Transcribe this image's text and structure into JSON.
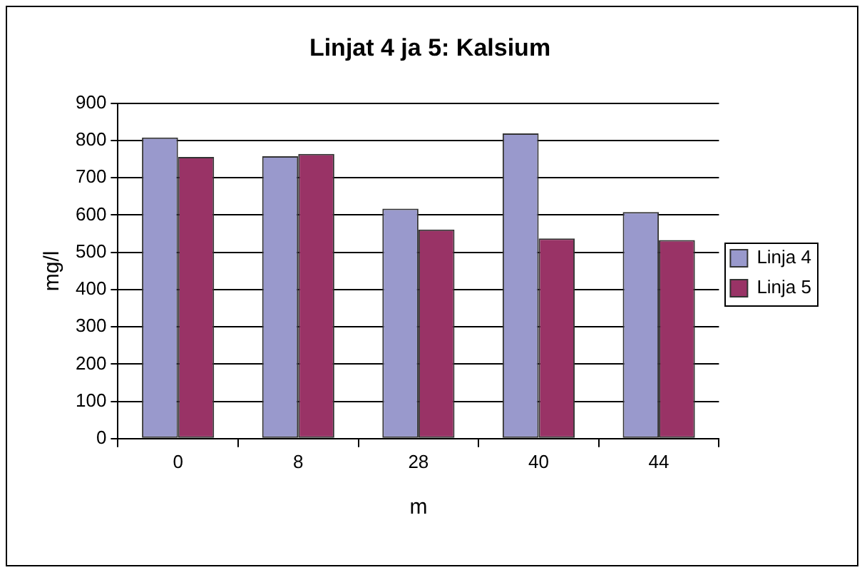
{
  "chart_data": {
    "type": "bar",
    "title": "Linjat 4 ja 5: Kalsium",
    "xlabel": "m",
    "ylabel": "mg/l",
    "categories": [
      "0",
      "8",
      "28",
      "40",
      "44"
    ],
    "series": [
      {
        "name": "Linja 4",
        "color": "#9999cc",
        "values": [
          808,
          758,
          617,
          819,
          608
        ]
      },
      {
        "name": "Linja 5",
        "color": "#993366",
        "values": [
          756,
          764,
          561,
          537,
          533
        ]
      }
    ],
    "ylim": [
      0,
      900
    ],
    "yticks": [
      0,
      100,
      200,
      300,
      400,
      500,
      600,
      700,
      800,
      900
    ],
    "grid": "y",
    "legend": "right"
  }
}
